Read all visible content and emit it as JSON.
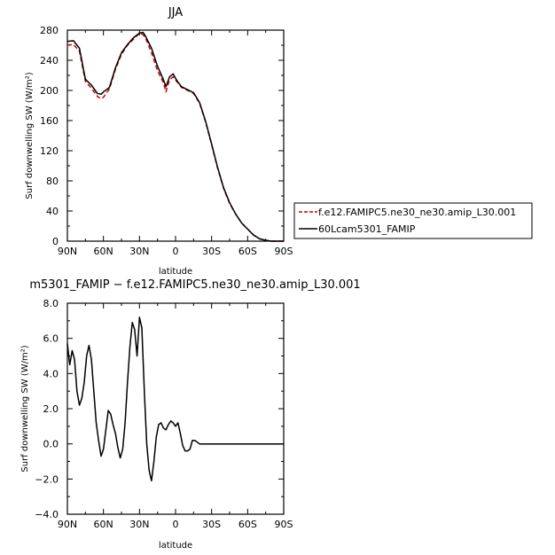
{
  "chart_data": [
    {
      "type": "line",
      "title": "JJA",
      "xlabel": "latitude",
      "ylabel": "Surf downwelling SW (W/m²)",
      "xlim": [
        90,
        -90
      ],
      "ylim": [
        0,
        280
      ],
      "x_ticks": [
        "90N",
        "60N",
        "30N",
        "0",
        "30S",
        "60S",
        "90S"
      ],
      "y_ticks": [
        "0",
        "40",
        "80",
        "120",
        "160",
        "200",
        "240",
        "280"
      ],
      "legend_position": "right",
      "series": [
        {
          "name": "f.e12.FAMIPC5.ne30_ne30.amip_L30.001",
          "color": "#cc0000",
          "style": "dashed",
          "x": [
            90,
            85,
            80,
            75,
            70,
            65,
            62,
            60,
            55,
            50,
            45,
            40,
            35,
            30,
            27,
            25,
            20,
            15,
            10,
            8,
            5,
            2,
            0,
            -2,
            -5,
            -10,
            -15,
            -20,
            -25,
            -30,
            -35,
            -40,
            -45,
            -50,
            -55,
            -60,
            -65,
            -70,
            -75,
            -80,
            -85,
            -90
          ],
          "y": [
            260,
            261,
            252,
            212,
            203,
            192,
            189,
            191,
            202,
            228,
            248,
            260,
            268,
            276,
            274,
            270,
            250,
            226,
            210,
            198,
            214,
            218,
            214,
            210,
            204,
            200,
            196,
            183,
            158,
            128,
            97,
            70,
            50,
            36,
            24,
            16,
            8,
            3,
            1,
            0,
            0,
            0
          ]
        },
        {
          "name": "60Lcam5301_FAMIP",
          "color": "#000000",
          "style": "solid",
          "x": [
            90,
            85,
            80,
            75,
            70,
            65,
            62,
            60,
            55,
            50,
            45,
            40,
            35,
            30,
            27,
            25,
            20,
            15,
            10,
            8,
            5,
            2,
            0,
            -2,
            -5,
            -10,
            -15,
            -20,
            -25,
            -30,
            -35,
            -40,
            -45,
            -50,
            -55,
            -60,
            -65,
            -70,
            -75,
            -80,
            -85,
            -90
          ],
          "y": [
            265,
            266,
            256,
            215,
            207,
            196,
            195,
            198,
            204,
            230,
            250,
            261,
            270,
            276,
            277,
            272,
            256,
            232,
            214,
            205,
            218,
            222,
            216,
            211,
            205,
            201,
            197,
            184,
            159,
            129,
            98,
            71,
            51,
            36,
            24,
            16,
            8,
            3,
            1,
            0,
            0,
            0
          ]
        }
      ]
    },
    {
      "type": "line",
      "title": "m5301_FAMIP − f.e12.FAMIPC5.ne30_ne30.amip_L30.001",
      "xlabel": "latitude",
      "ylabel": "Surf downwelling SW (W/m²)",
      "xlim": [
        90,
        -90
      ],
      "ylim": [
        -4,
        8
      ],
      "x_ticks": [
        "90N",
        "60N",
        "30N",
        "0",
        "30S",
        "60S",
        "90S"
      ],
      "y_ticks": [
        "−4.0",
        "−2.0",
        "0.0",
        "2.0",
        "4.0",
        "6.0",
        "8.0"
      ],
      "series": [
        {
          "name": "",
          "color": "#000000",
          "style": "solid",
          "x": [
            90,
            88,
            86,
            84,
            82,
            80,
            78,
            76,
            74,
            72,
            70,
            68,
            66,
            64,
            62,
            60,
            58,
            56,
            54,
            52,
            50,
            48,
            46,
            44,
            42,
            40,
            38,
            36,
            34,
            32,
            30,
            28,
            26,
            24,
            22,
            20,
            18,
            16,
            14,
            12,
            10,
            8,
            6,
            4,
            2,
            0,
            -2,
            -4,
            -6,
            -8,
            -10,
            -12,
            -14,
            -16,
            -18,
            -20,
            -22,
            -24,
            -26,
            -28,
            -30,
            -32,
            -34,
            -36,
            -38,
            -40,
            -42,
            -44,
            -46,
            -48,
            -50,
            -52,
            -54,
            -56,
            -58,
            -60,
            -62,
            -64,
            -66,
            -68,
            -70,
            -75,
            -80,
            -85,
            -90
          ],
          "y": [
            5.7,
            4.5,
            5.3,
            4.8,
            3.0,
            2.2,
            2.6,
            3.5,
            5.0,
            5.6,
            4.8,
            3.0,
            1.2,
            0.2,
            -0.7,
            -0.3,
            0.8,
            1.9,
            1.7,
            1.1,
            0.6,
            -0.2,
            -0.8,
            -0.3,
            1.2,
            3.5,
            5.5,
            6.9,
            6.5,
            5.0,
            7.2,
            6.6,
            3.0,
            0.0,
            -1.5,
            -2.1,
            -1.0,
            0.4,
            1.1,
            1.2,
            0.9,
            0.8,
            1.1,
            1.3,
            1.2,
            1.0,
            1.2,
            0.6,
            -0.1,
            -0.4,
            -0.4,
            -0.3,
            0.2,
            0.2,
            0.1,
            0.0,
            0.0,
            0.0,
            0.0,
            0.0,
            0.0,
            0.0,
            0.0,
            0.0,
            0.0,
            0.0,
            0.0,
            0.0,
            0.0,
            0.0,
            0.0,
            0.0,
            0.0,
            0.0,
            0.0,
            0.0,
            0.0,
            0.0,
            0.0,
            0.0,
            0.0,
            0.0,
            0.0,
            0.0,
            0.0
          ]
        }
      ]
    }
  ]
}
